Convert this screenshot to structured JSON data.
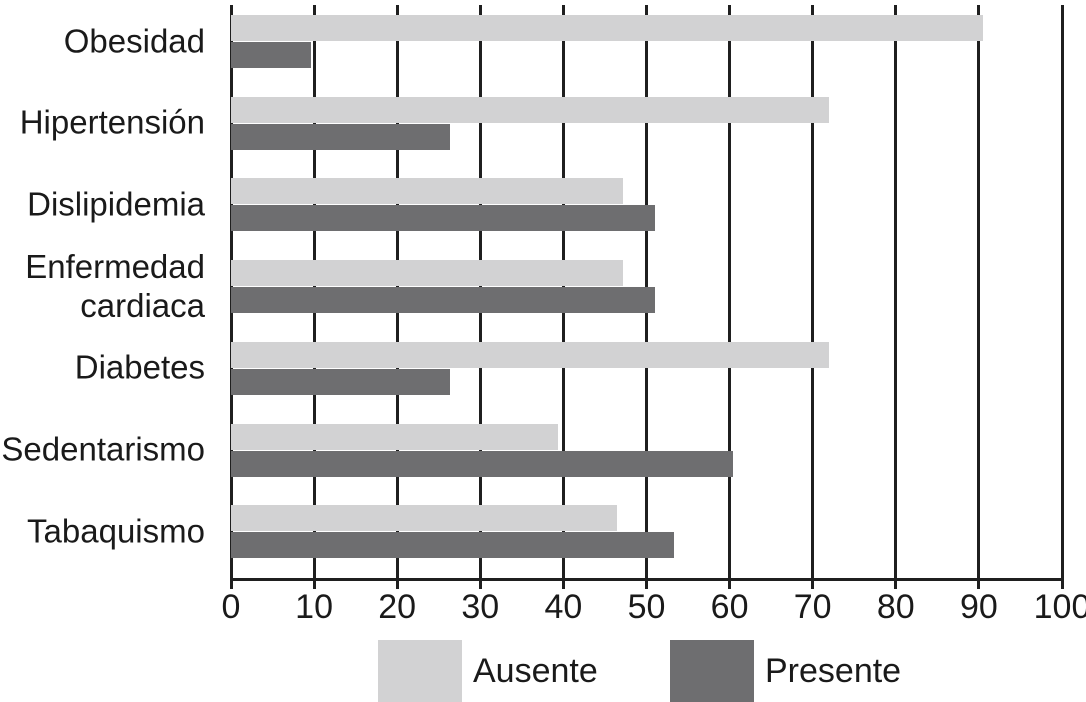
{
  "chart_data": {
    "type": "bar",
    "orientation": "horizontal",
    "title": "",
    "xlabel": "",
    "ylabel": "",
    "categories": [
      "Obesidad",
      "Hipertensión",
      "Dislipidemia",
      "Enfermedad cardiaca",
      "Diabetes",
      "Sedentarismo",
      "Tabaquismo"
    ],
    "series": [
      {
        "name": "Ausente",
        "color": "#d2d2d3",
        "values": [
          90.5,
          72.0,
          47.2,
          47.2,
          72.0,
          39.4,
          46.5
        ]
      },
      {
        "name": "Presente",
        "color": "#6e6e70",
        "values": [
          9.6,
          26.3,
          51.0,
          51.0,
          26.3,
          60.4,
          53.3
        ]
      }
    ],
    "xlim": [
      0,
      100
    ],
    "xticks": [
      0,
      10,
      20,
      30,
      40,
      50,
      60,
      70,
      80,
      90,
      100
    ],
    "grid": true,
    "gridline_color": "#1f1f1f",
    "legend_position": "bottom"
  }
}
